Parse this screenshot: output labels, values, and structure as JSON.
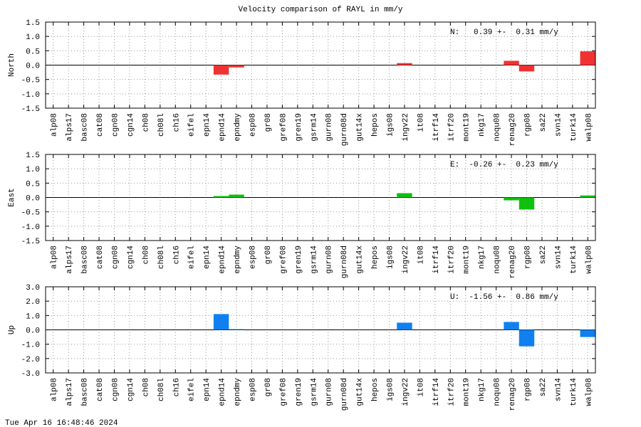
{
  "chart_data": [
    {
      "type": "bar",
      "title": "Velocity comparison of RAYL in mm/y",
      "ylabel": "North",
      "annotation": "N:   0.39 +-  0.31 mm/y",
      "categories": [
        "alp08",
        "alps17",
        "basc08",
        "cat08",
        "cgn08",
        "cgn14",
        "ch08",
        "ch08l",
        "ch16",
        "eifel",
        "epn14",
        "epnd14",
        "epndmy",
        "esp08",
        "gr08",
        "gref08",
        "gren19",
        "gsrm14",
        "gurn08",
        "gurn08d",
        "gut14x",
        "hepos",
        "igs08",
        "ingv22",
        "it08",
        "itrf14",
        "itrf20",
        "mont19",
        "nkg17",
        "noqu08",
        "renag20",
        "rgp08",
        "sa22",
        "svn14",
        "turk14",
        "walp08"
      ],
      "values": [
        0,
        0,
        0,
        0,
        0,
        0,
        0,
        0,
        0,
        0,
        0,
        -0.33,
        -0.08,
        0,
        0,
        0,
        0,
        0,
        0,
        0,
        0,
        0,
        0,
        0.07,
        0,
        0,
        0,
        0,
        0,
        0,
        0.15,
        -0.22,
        0,
        0,
        0,
        0.48
      ],
      "color": "#f03232",
      "ylim": [
        -1.5,
        1.5
      ],
      "yticks": [
        1.5,
        {
          "value": 1,
          "label": "1.0"
        },
        0.5,
        {
          "value": 0,
          "label": "0.0"
        },
        -0.5,
        {
          "value": -1,
          "label": "-1.0"
        },
        -1.5
      ],
      "grid": true
    },
    {
      "type": "bar",
      "ylabel": "East",
      "annotation": "E:  -0.26 +-  0.23 mm/y",
      "categories": [
        "alp08",
        "alps17",
        "basc08",
        "cat08",
        "cgn08",
        "cgn14",
        "ch08",
        "ch08l",
        "ch16",
        "eifel",
        "epn14",
        "epnd14",
        "epndmy",
        "esp08",
        "gr08",
        "gref08",
        "gren19",
        "gsrm14",
        "gurn08",
        "gurn08d",
        "gut14x",
        "hepos",
        "igs08",
        "ingv22",
        "it08",
        "itrf14",
        "itrf20",
        "mont19",
        "nkg17",
        "noqu08",
        "renag20",
        "rgp08",
        "sa22",
        "svn14",
        "turk14",
        "walp08"
      ],
      "values": [
        0,
        0,
        0,
        0,
        0,
        0,
        0,
        0,
        0,
        0,
        0,
        0.05,
        0.1,
        0,
        0,
        0,
        0,
        0,
        0,
        0,
        0,
        0,
        0,
        0.15,
        0,
        0,
        0,
        0,
        0,
        0,
        -0.1,
        -0.42,
        0,
        0,
        0,
        0.07
      ],
      "color": "#10c010",
      "ylim": [
        -1.5,
        1.5
      ],
      "yticks": [
        1.5,
        {
          "value": 1,
          "label": "1.0"
        },
        0.5,
        {
          "value": 0,
          "label": "0.0"
        },
        -0.5,
        {
          "value": -1,
          "label": "-1.0"
        },
        -1.5
      ],
      "grid": true
    },
    {
      "type": "bar",
      "ylabel": "Up",
      "annotation": "U:  -1.56 +-  0.86 mm/y",
      "categories": [
        "alp08",
        "alps17",
        "basc08",
        "cat08",
        "cgn08",
        "cgn14",
        "ch08",
        "ch08l",
        "ch16",
        "eifel",
        "epn14",
        "epnd14",
        "epndmy",
        "esp08",
        "gr08",
        "gref08",
        "gren19",
        "gsrm14",
        "gurn08",
        "gurn08d",
        "gut14x",
        "hepos",
        "igs08",
        "ingv22",
        "it08",
        "itrf14",
        "itrf20",
        "mont19",
        "nkg17",
        "noqu08",
        "renag20",
        "rgp08",
        "sa22",
        "svn14",
        "turk14",
        "walp08"
      ],
      "values": [
        0,
        0,
        0,
        0,
        0,
        0,
        0,
        0,
        0,
        0,
        0,
        1.1,
        0.05,
        0,
        0,
        0,
        0,
        0,
        0,
        0,
        0,
        0,
        0,
        0.5,
        0,
        0,
        0,
        0,
        0,
        0,
        0.55,
        -1.15,
        0,
        0,
        0,
        -0.5
      ],
      "color": "#1080f0",
      "ylim": [
        -3,
        3
      ],
      "yticks": [
        {
          "value": 3,
          "label": "3.0"
        },
        {
          "value": 2,
          "label": "2.0"
        },
        {
          "value": 1,
          "label": "1.0"
        },
        {
          "value": 0,
          "label": "0.0"
        },
        {
          "value": -1,
          "label": "-1.0"
        },
        {
          "value": -2,
          "label": "-2.0"
        },
        {
          "value": -3,
          "label": "-3.0"
        }
      ],
      "grid": true
    }
  ],
  "footer": "Tue Apr 16 16:48:46 2024"
}
